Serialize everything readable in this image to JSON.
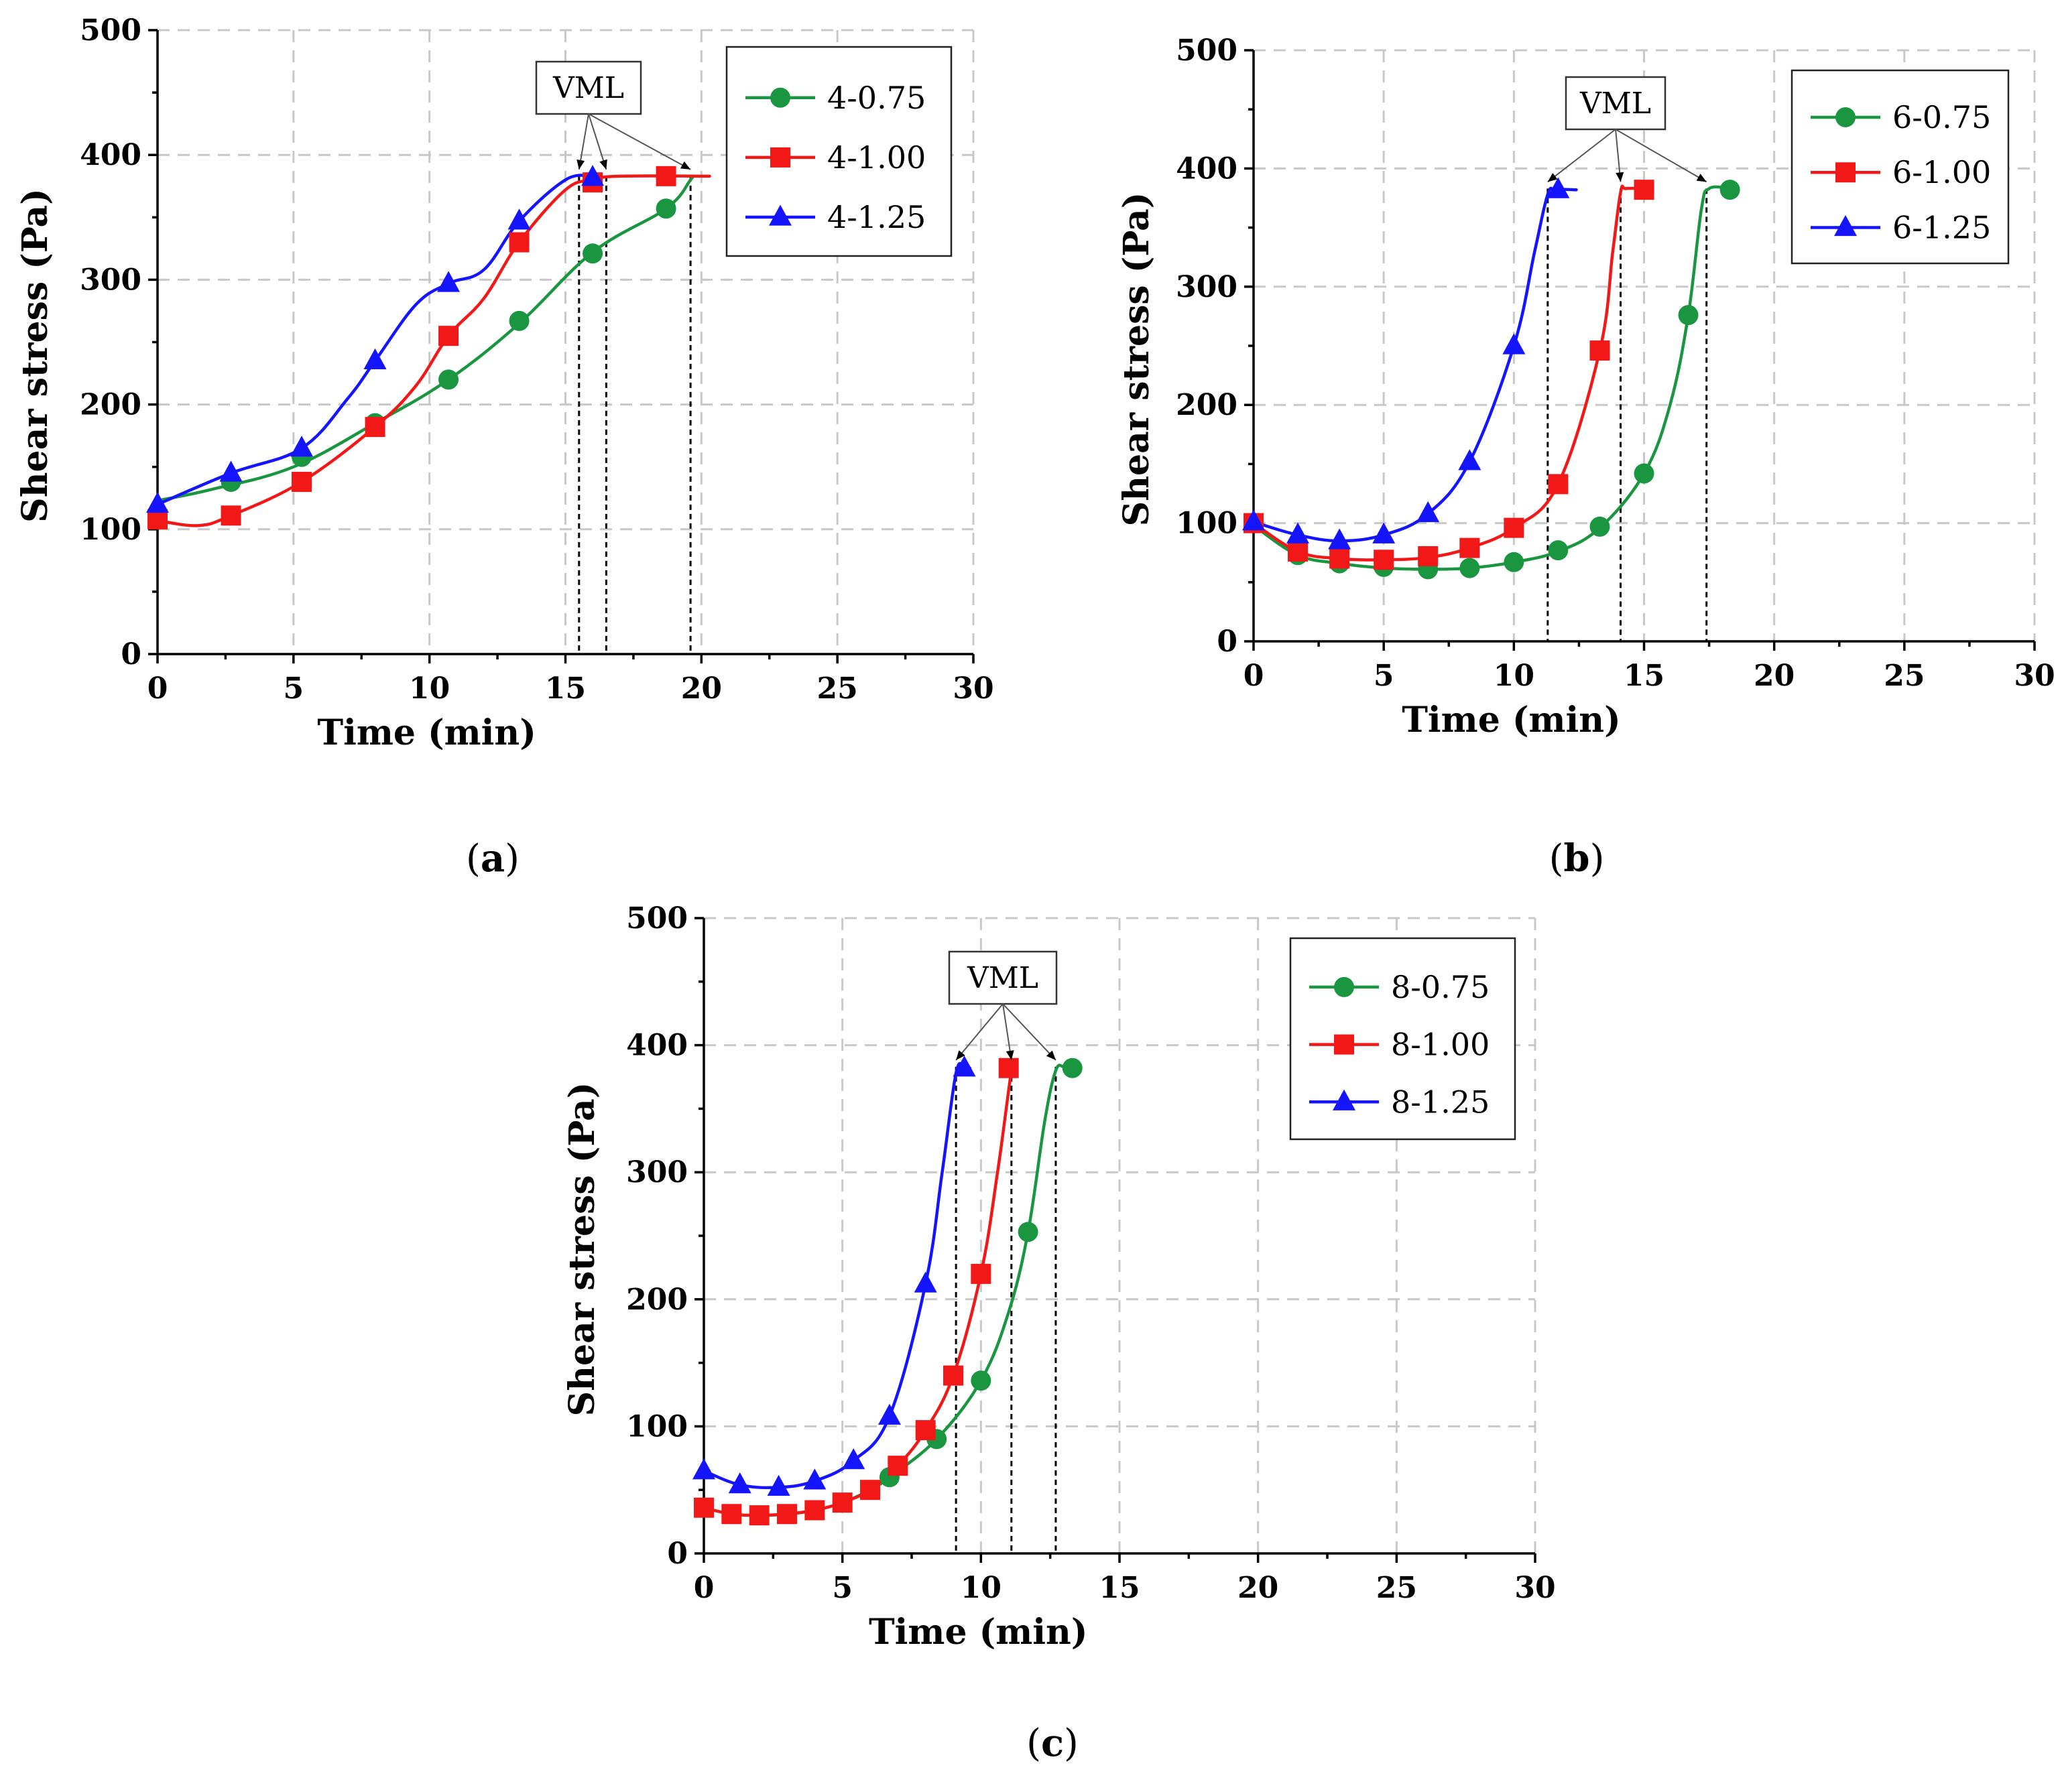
{
  "colors": {
    "green": "#1a9641",
    "red": "#f21818",
    "blue": "#1414ff"
  },
  "chart_data": [
    {
      "id": "a",
      "panel_label": "a",
      "type": "line",
      "xlabel": "Time (min)",
      "ylabel": "Shear stress (Pa)",
      "xlim": [
        0,
        30
      ],
      "ylim": [
        0,
        500
      ],
      "xticks": [
        "0",
        "5",
        "10",
        "15",
        "20",
        "25",
        "30"
      ],
      "yticks": [
        "0",
        "100",
        "200",
        "300",
        "400",
        "500"
      ],
      "grid": true,
      "legend_position": "top-right",
      "annotation": {
        "text": "VML",
        "targets": [
          [
            15.5,
            383
          ],
          [
            16.5,
            383
          ],
          [
            19.6,
            383
          ]
        ],
        "drop_lines_x": [
          15.5,
          16.5,
          19.6
        ]
      },
      "series": [
        {
          "name": "4-0.75",
          "color": "green",
          "marker": "circle",
          "line": [
            [
              0,
              123
            ],
            [
              2,
              132
            ],
            [
              5,
              150
            ],
            [
              8,
              185
            ],
            [
              10.7,
              220
            ],
            [
              13.3,
              265
            ],
            [
              16,
              322
            ],
            [
              18.7,
              357
            ],
            [
              19.6,
              380
            ],
            [
              19.7,
              383
            ]
          ],
          "markers": [
            [
              2.7,
              138
            ],
            [
              5.3,
              158
            ],
            [
              8,
              185
            ],
            [
              10.7,
              220
            ],
            [
              13.3,
              267
            ],
            [
              16,
              321
            ],
            [
              18.7,
              357
            ]
          ]
        },
        {
          "name": "4-1.00",
          "color": "red",
          "marker": "square",
          "line": [
            [
              0,
              107
            ],
            [
              1.5,
              103
            ],
            [
              2.7,
              111
            ],
            [
              5.3,
              138
            ],
            [
              8,
              182
            ],
            [
              9.5,
              215
            ],
            [
              10.7,
              255
            ],
            [
              12,
              285
            ],
            [
              13.3,
              330
            ],
            [
              15,
              372
            ],
            [
              16,
              380
            ],
            [
              17,
              383
            ],
            [
              20.3,
              383
            ]
          ],
          "markers": [
            [
              0,
              108
            ],
            [
              2.7,
              111
            ],
            [
              5.3,
              138
            ],
            [
              8,
              182
            ],
            [
              10.7,
              255
            ],
            [
              13.3,
              330
            ],
            [
              16,
              378
            ],
            [
              18.7,
              383
            ]
          ]
        },
        {
          "name": "4-1.25",
          "color": "blue",
          "marker": "triangle",
          "line": [
            [
              0,
              120
            ],
            [
              2.7,
              145
            ],
            [
              5.3,
              165
            ],
            [
              7,
              205
            ],
            [
              8,
              235
            ],
            [
              9.5,
              280
            ],
            [
              10.7,
              297
            ],
            [
              12,
              308
            ],
            [
              13.3,
              347
            ],
            [
              15,
              380
            ],
            [
              16,
              383
            ]
          ],
          "markers": [
            [
              0,
              120
            ],
            [
              2.7,
              145
            ],
            [
              5.3,
              165
            ],
            [
              8,
              235
            ],
            [
              10.7,
              297
            ],
            [
              13.3,
              347
            ],
            [
              16,
              382
            ]
          ]
        }
      ]
    },
    {
      "id": "b",
      "panel_label": "b",
      "type": "line",
      "xlabel": "Time (min)",
      "ylabel": "Shear stress (Pa)",
      "xlim": [
        0,
        30
      ],
      "ylim": [
        0,
        500
      ],
      "xticks": [
        "0",
        "5",
        "10",
        "15",
        "20",
        "25",
        "30"
      ],
      "yticks": [
        "0",
        "100",
        "200",
        "300",
        "400",
        "500"
      ],
      "grid": true,
      "legend_position": "top-right",
      "annotation": {
        "text": "VML",
        "targets": [
          [
            11.3,
            383
          ],
          [
            14.1,
            383
          ],
          [
            17.4,
            383
          ]
        ],
        "drop_lines_x": [
          11.3,
          14.1,
          17.4
        ]
      },
      "series": [
        {
          "name": "6-0.75",
          "color": "green",
          "marker": "circle",
          "line": [
            [
              0,
              98
            ],
            [
              1.7,
              73
            ],
            [
              3.3,
              66
            ],
            [
              5,
              62
            ],
            [
              6.7,
              61
            ],
            [
              8.3,
              62
            ],
            [
              10,
              67
            ],
            [
              11.7,
              76
            ],
            [
              13.3,
              96
            ],
            [
              15,
              142
            ],
            [
              16,
              200
            ],
            [
              16.7,
              276
            ],
            [
              17.2,
              365
            ],
            [
              17.5,
              383
            ],
            [
              18.3,
              383
            ]
          ],
          "markers": [
            [
              1.7,
              73
            ],
            [
              3.3,
              66
            ],
            [
              5,
              63
            ],
            [
              6.7,
              61
            ],
            [
              8.3,
              62
            ],
            [
              10,
              67
            ],
            [
              11.7,
              77
            ],
            [
              13.3,
              97
            ],
            [
              15,
              142
            ],
            [
              16.7,
              276
            ],
            [
              18.3,
              382
            ]
          ]
        },
        {
          "name": "6-1.00",
          "color": "red",
          "marker": "square",
          "line": [
            [
              0,
              100
            ],
            [
              1.7,
              76
            ],
            [
              3.3,
              70
            ],
            [
              5,
              69
            ],
            [
              6.7,
              71
            ],
            [
              8.3,
              79
            ],
            [
              10,
              96
            ],
            [
              11.7,
              133
            ],
            [
              13.3,
              246
            ],
            [
              13.8,
              330
            ],
            [
              14.1,
              380
            ],
            [
              14.3,
              383
            ],
            [
              15,
              383
            ]
          ],
          "markers": [
            [
              0,
              100
            ],
            [
              1.7,
              76
            ],
            [
              3.3,
              70
            ],
            [
              5,
              69
            ],
            [
              6.7,
              72
            ],
            [
              8.3,
              79
            ],
            [
              10,
              96
            ],
            [
              11.7,
              133
            ],
            [
              13.3,
              246
            ],
            [
              15,
              382
            ]
          ]
        },
        {
          "name": "6-1.25",
          "color": "blue",
          "marker": "triangle",
          "line": [
            [
              0,
              101
            ],
            [
              1.7,
              90
            ],
            [
              3.3,
              85
            ],
            [
              5,
              90
            ],
            [
              6.7,
              108
            ],
            [
              8.3,
              152
            ],
            [
              10,
              250
            ],
            [
              10.8,
              330
            ],
            [
              11.3,
              378
            ],
            [
              11.6,
              382
            ],
            [
              12.4,
              382
            ]
          ],
          "markers": [
            [
              0,
              101
            ],
            [
              1.7,
              90
            ],
            [
              3.3,
              85
            ],
            [
              5,
              90
            ],
            [
              6.7,
              108
            ],
            [
              8.3,
              152
            ],
            [
              10,
              250
            ],
            [
              11.7,
              382
            ]
          ]
        }
      ]
    },
    {
      "id": "c",
      "panel_label": "c",
      "type": "line",
      "xlabel": "Time (min)",
      "ylabel": "Shear stress (Pa)",
      "xlim": [
        0,
        30
      ],
      "ylim": [
        0,
        500
      ],
      "xticks": [
        "0",
        "5",
        "10",
        "15",
        "20",
        "25",
        "30"
      ],
      "yticks": [
        "0",
        "100",
        "200",
        "300",
        "400",
        "500"
      ],
      "grid": true,
      "legend_position": "top-right",
      "annotation": {
        "text": "VML",
        "targets": [
          [
            9.1,
            383
          ],
          [
            11.1,
            383
          ],
          [
            12.7,
            383
          ]
        ],
        "drop_lines_x": [
          9.1,
          11.1,
          12.7
        ]
      },
      "series": [
        {
          "name": "8-0.75",
          "color": "green",
          "marker": "circle",
          "line": [
            [
              0,
              36
            ],
            [
              1,
              31
            ],
            [
              2,
              30
            ],
            [
              3,
              31
            ],
            [
              4,
              34
            ],
            [
              5,
              40
            ],
            [
              6,
              50
            ],
            [
              6.7,
              60
            ],
            [
              8.4,
              90
            ],
            [
              10,
              136
            ],
            [
              11,
              190
            ],
            [
              11.7,
              253
            ],
            [
              12.3,
              340
            ],
            [
              12.7,
              380
            ],
            [
              13,
              383
            ],
            [
              13.3,
              383
            ]
          ],
          "markers": [
            [
              6.7,
              60
            ],
            [
              8.4,
              90
            ],
            [
              10,
              136
            ],
            [
              11.7,
              253
            ],
            [
              13.3,
              382
            ]
          ]
        },
        {
          "name": "8-1.00",
          "color": "red",
          "marker": "square",
          "line": [
            [
              0,
              36
            ],
            [
              1,
              31
            ],
            [
              2,
              30
            ],
            [
              3,
              31
            ],
            [
              4,
              34
            ],
            [
              5,
              40
            ],
            [
              6,
              50
            ],
            [
              7,
              69
            ],
            [
              8,
              97
            ],
            [
              9,
              140
            ],
            [
              10,
              220
            ],
            [
              10.6,
              300
            ],
            [
              11.1,
              380
            ],
            [
              11.2,
              383
            ]
          ],
          "markers": [
            [
              0,
              36
            ],
            [
              1,
              31
            ],
            [
              2,
              30
            ],
            [
              3,
              31
            ],
            [
              4,
              34
            ],
            [
              5,
              40
            ],
            [
              6,
              50
            ],
            [
              7,
              69
            ],
            [
              8,
              97
            ],
            [
              9,
              140
            ],
            [
              10,
              220
            ],
            [
              11,
              382
            ]
          ]
        },
        {
          "name": "8-1.25",
          "color": "blue",
          "marker": "triangle",
          "line": [
            [
              0,
              65
            ],
            [
              1.3,
              54
            ],
            [
              2.7,
              52
            ],
            [
              4,
              57
            ],
            [
              5.4,
              73
            ],
            [
              6.7,
              108
            ],
            [
              8,
              212
            ],
            [
              8.6,
              300
            ],
            [
              9.1,
              378
            ],
            [
              9.4,
              382
            ],
            [
              9.6,
              382
            ]
          ],
          "markers": [
            [
              0,
              65
            ],
            [
              1.3,
              54
            ],
            [
              2.7,
              52
            ],
            [
              4,
              57
            ],
            [
              5.4,
              73
            ],
            [
              6.7,
              108
            ],
            [
              8,
              212
            ],
            [
              9.4,
              382
            ]
          ]
        }
      ]
    }
  ]
}
